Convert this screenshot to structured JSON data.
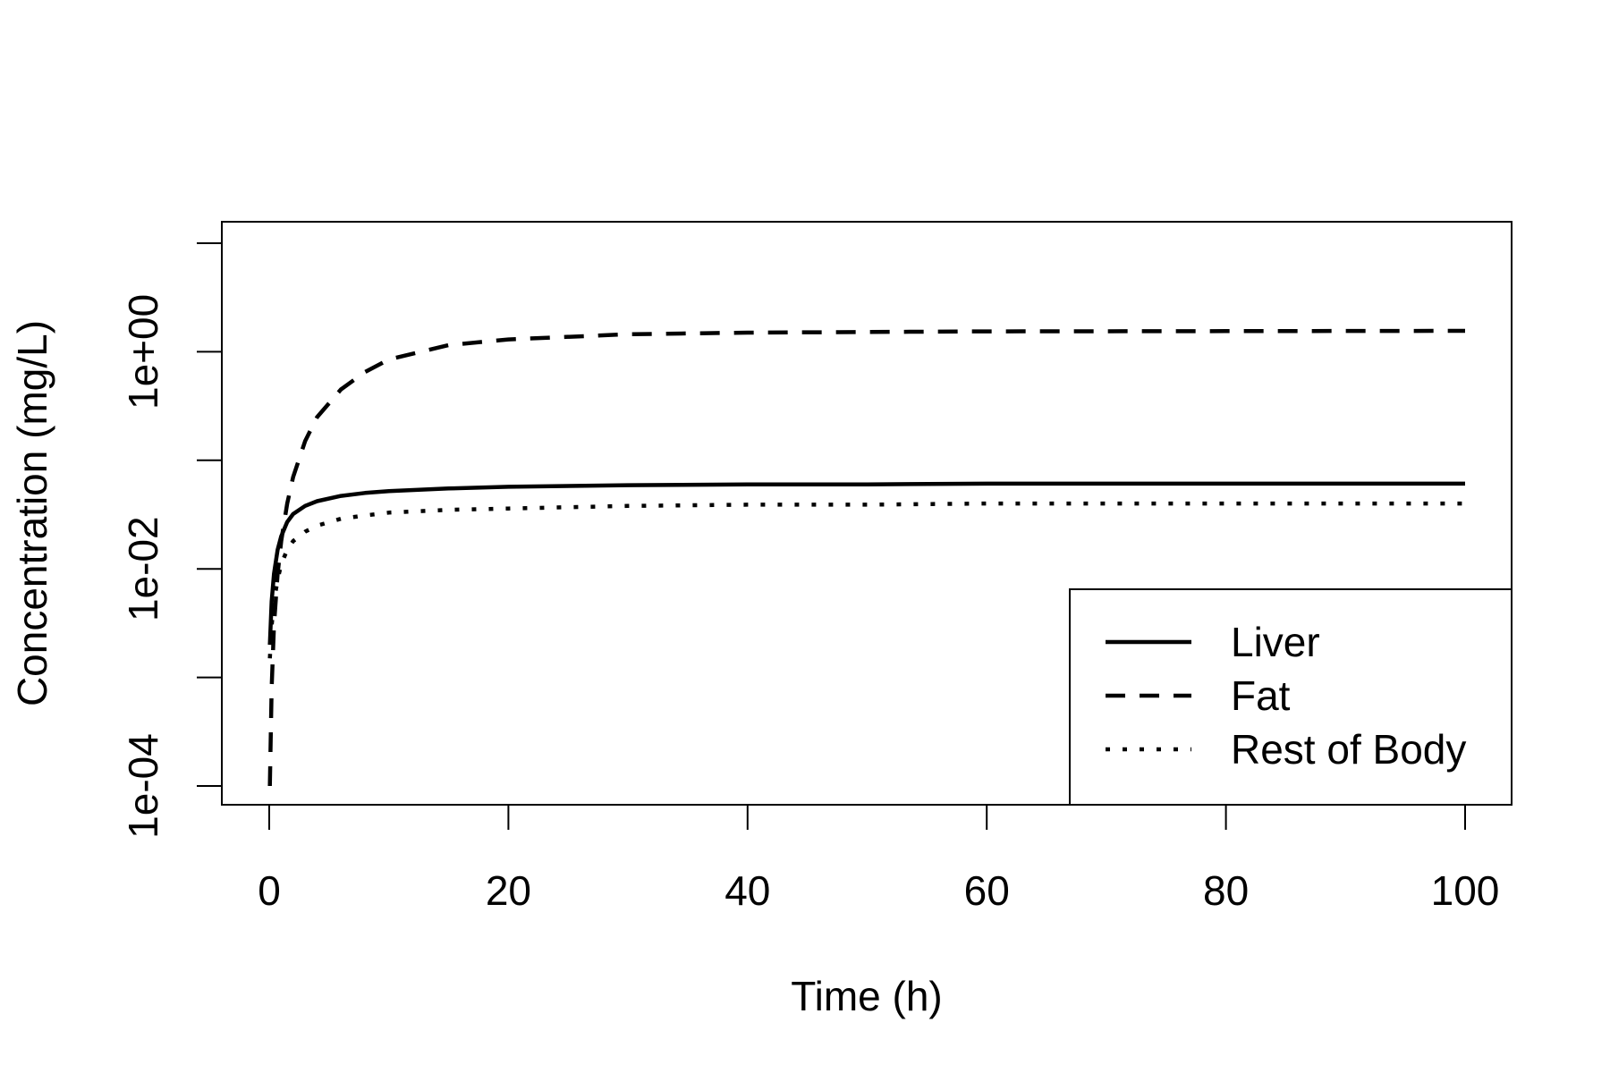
{
  "chart_data": {
    "type": "line",
    "title": "",
    "xlabel": "Time (h)",
    "ylabel": "Concentration (mg/L)",
    "xlim": [
      0,
      100
    ],
    "ylim": [
      0.0001,
      10
    ],
    "y_scale": "log",
    "x_ticks": [
      0,
      20,
      40,
      60,
      80,
      100
    ],
    "y_ticks": [
      0.0001,
      0.001,
      0.01,
      0.1,
      1,
      10
    ],
    "y_tick_labels": [
      "1e-04",
      "",
      "1e-02",
      "",
      "1e+00",
      ""
    ],
    "legend_position": "bottom-right",
    "grid": false,
    "series": [
      {
        "name": "Liver",
        "line_style": "solid",
        "color": "#000000",
        "x": [
          0.05,
          0.2,
          0.4,
          0.7,
          1,
          1.5,
          2,
          3,
          4,
          6,
          8,
          10,
          15,
          20,
          30,
          40,
          50,
          60,
          80,
          100
        ],
        "y": [
          0.002,
          0.005,
          0.009,
          0.015,
          0.02,
          0.027,
          0.032,
          0.038,
          0.042,
          0.047,
          0.05,
          0.052,
          0.055,
          0.057,
          0.059,
          0.06,
          0.06,
          0.061,
          0.061,
          0.061
        ]
      },
      {
        "name": "Fat",
        "line_style": "dashed",
        "color": "#000000",
        "x": [
          0.05,
          0.2,
          0.4,
          0.7,
          1,
          1.5,
          2,
          3,
          4,
          6,
          8,
          10,
          15,
          20,
          30,
          40,
          50,
          60,
          80,
          100
        ],
        "y": [
          0.0001,
          0.0008,
          0.003,
          0.009,
          0.018,
          0.04,
          0.07,
          0.15,
          0.25,
          0.45,
          0.65,
          0.85,
          1.15,
          1.3,
          1.45,
          1.5,
          1.52,
          1.54,
          1.55,
          1.56
        ]
      },
      {
        "name": "Rest of Body",
        "line_style": "dotted",
        "color": "#000000",
        "x": [
          0.05,
          0.2,
          0.4,
          0.7,
          1,
          1.5,
          2,
          3,
          4,
          6,
          8,
          10,
          15,
          20,
          30,
          40,
          50,
          60,
          80,
          100
        ],
        "y": [
          0.0015,
          0.003,
          0.005,
          0.008,
          0.011,
          0.015,
          0.018,
          0.022,
          0.025,
          0.029,
          0.031,
          0.033,
          0.035,
          0.036,
          0.038,
          0.039,
          0.039,
          0.04,
          0.04,
          0.04
        ]
      }
    ]
  }
}
